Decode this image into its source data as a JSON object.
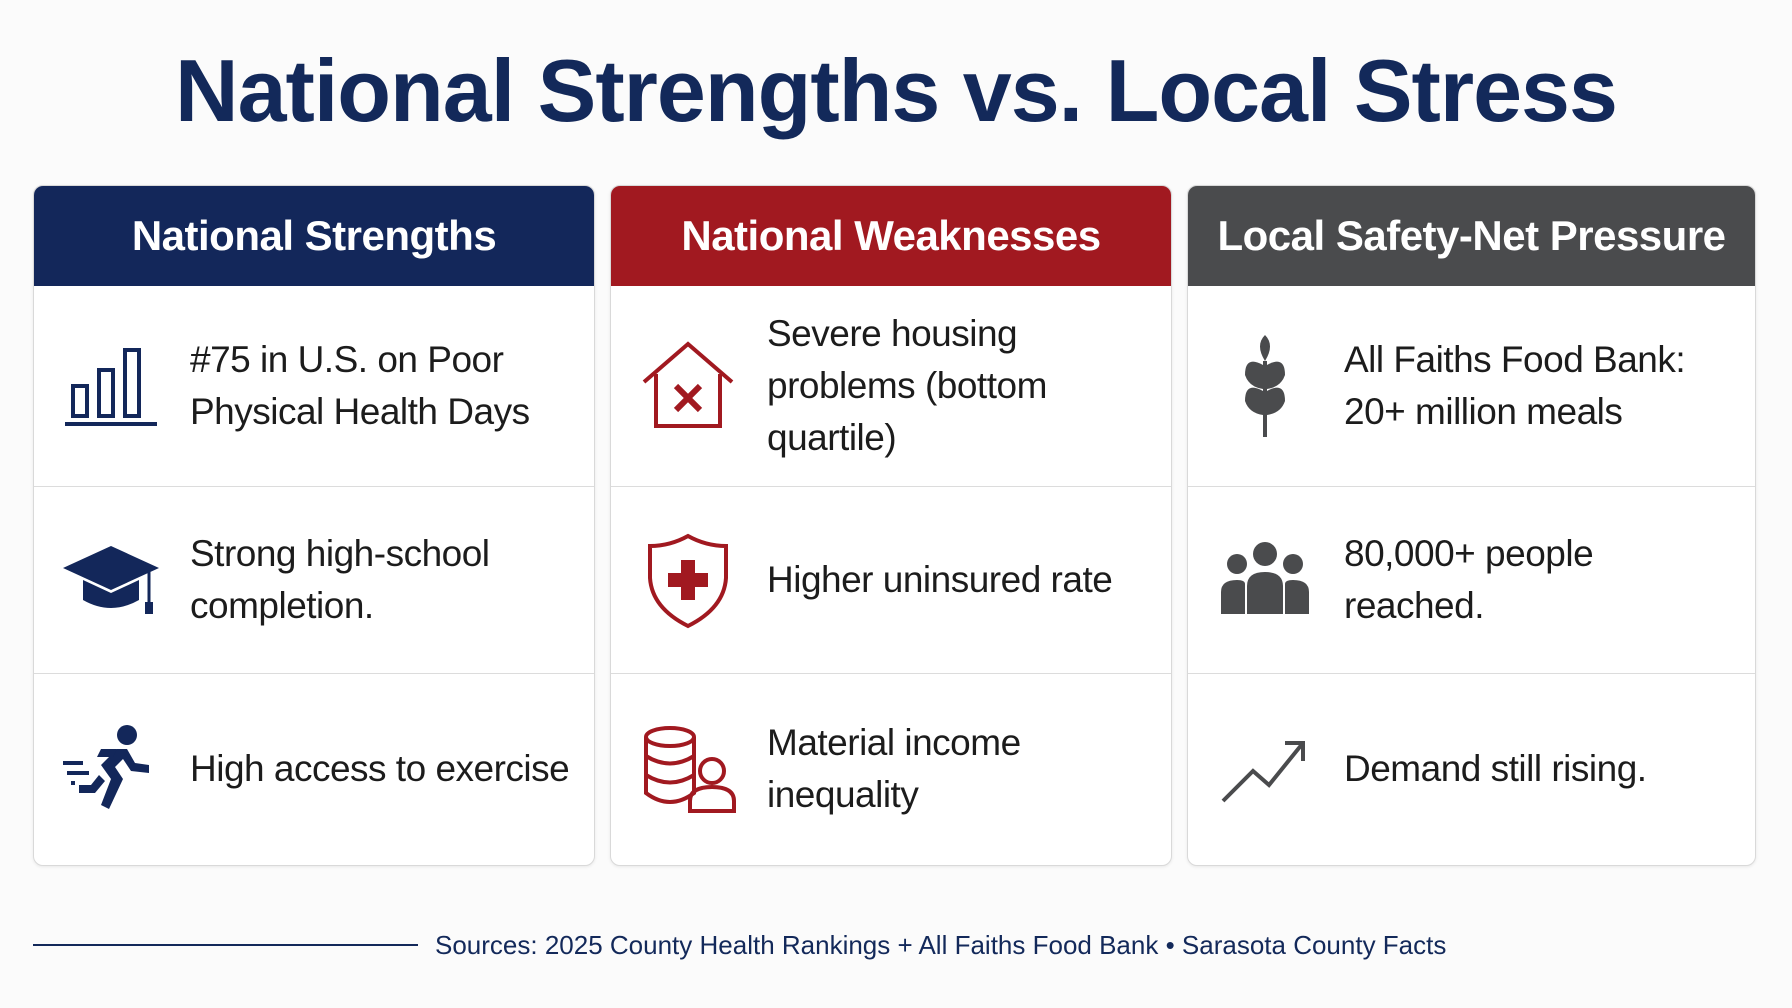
{
  "title": "National Strengths vs. Local Stress",
  "colors": {
    "navy": "#13275a",
    "red": "#a11920",
    "gray": "#4a4b4d"
  },
  "columns": [
    {
      "header": "National Strengths",
      "items": [
        {
          "icon": "bar-chart-icon",
          "text": "#75 in U.S. on Poor Physical Health Days"
        },
        {
          "icon": "graduation-cap-icon",
          "text": "Strong high-school completion."
        },
        {
          "icon": "running-person-icon",
          "text": "High access to exercise"
        }
      ]
    },
    {
      "header": "National Weaknesses",
      "items": [
        {
          "icon": "house-x-icon",
          "text": "Severe housing problems (bottom quartile)"
        },
        {
          "icon": "shield-cross-icon",
          "text": "Higher uninsured rate"
        },
        {
          "icon": "coins-person-icon",
          "text": "Material income inequality"
        }
      ]
    },
    {
      "header": "Local Safety-Net Pressure",
      "items": [
        {
          "icon": "wheat-icon",
          "text": "All Faiths Food Bank: 20+ million meals"
        },
        {
          "icon": "people-group-icon",
          "text": "80,000+ people reached."
        },
        {
          "icon": "trend-up-icon",
          "text": "Demand still rising."
        }
      ]
    }
  ],
  "sources": "Sources: 2025 County Health Rankings + All Faiths Food Bank • Sarasota County Facts"
}
